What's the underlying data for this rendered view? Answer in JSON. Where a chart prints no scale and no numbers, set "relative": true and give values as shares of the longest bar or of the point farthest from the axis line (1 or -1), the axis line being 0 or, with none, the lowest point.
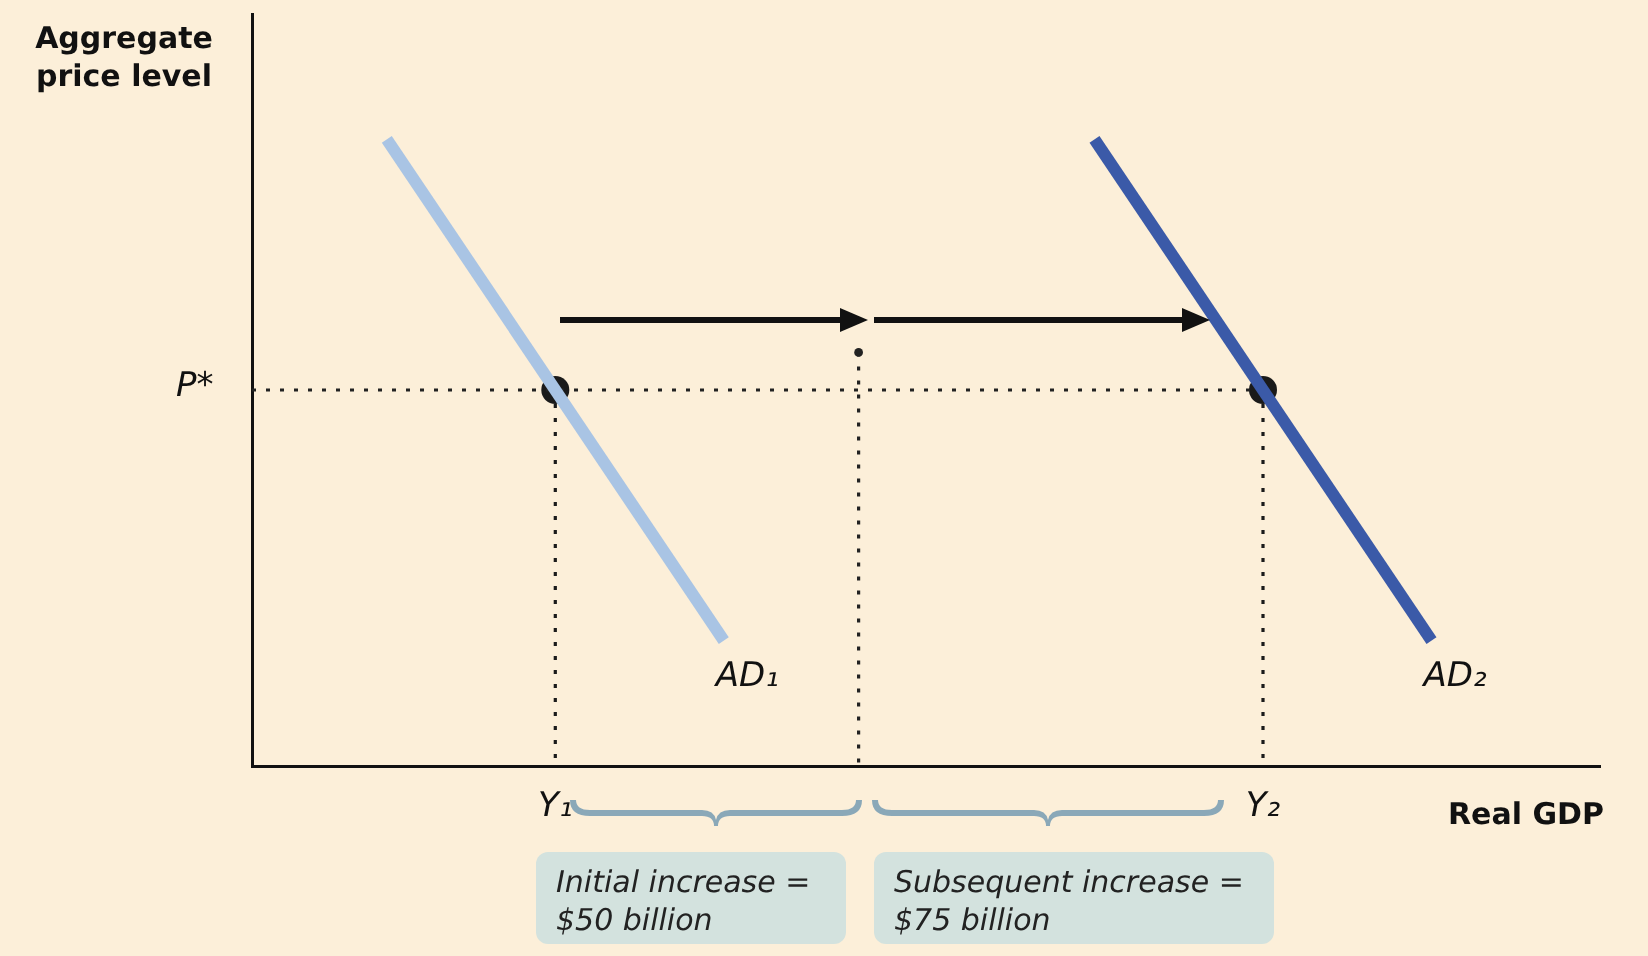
{
  "chart_data": {
    "type": "line",
    "relative": true,
    "xlabel": "Real GDP",
    "ylabel": "Aggregate price level",
    "tick_labels": "x",
    "legend": false,
    "grid": false,
    "categories": [
      null,
      null,
      null,
      null,
      null,
      null,
      null,
      null,
      null,
      "Y₁",
      null,
      null,
      null,
      null,
      null,
      null,
      null,
      null,
      null,
      null,
      null,
      null,
      null,
      null,
      null,
      null,
      null,
      null,
      null,
      null,
      "Y₂",
      null,
      null,
      null,
      null,
      null,
      null,
      null,
      null,
      null,
      null
    ],
    "series": [
      {
        "name": "AD₁",
        "color": "#a9c4e4",
        "marker": "none",
        "line_style": "solid",
        "values": [
          null,
          null,
          null,
          null,
          1,
          null,
          null,
          null,
          null,
          null,
          null,
          null,
          null,
          null,
          0.2,
          null,
          null,
          null,
          null,
          null,
          null,
          null,
          null,
          null,
          null,
          null,
          null,
          null,
          null,
          null,
          null,
          null,
          null,
          null,
          null,
          null,
          null,
          null,
          null,
          null,
          null
        ]
      },
      {
        "name": "AD₂",
        "color": "#3b5aa8",
        "marker": "none",
        "line_style": "solid",
        "values": [
          null,
          null,
          null,
          null,
          null,
          null,
          null,
          null,
          null,
          null,
          null,
          null,
          null,
          null,
          null,
          null,
          null,
          null,
          null,
          null,
          null,
          null,
          null,
          null,
          null,
          1,
          null,
          null,
          null,
          null,
          null,
          null,
          null,
          null,
          null,
          0.2,
          null,
          null,
          null,
          null,
          null
        ]
      },
      {
        "color": "#222222",
        "marker": "none",
        "line_style": "dotted",
        "values": [
          0.6,
          null,
          null,
          null,
          null,
          null,
          null,
          null,
          null,
          null,
          null,
          null,
          null,
          null,
          null,
          null,
          null,
          null,
          null,
          null,
          null,
          null,
          null,
          null,
          null,
          null,
          null,
          null,
          null,
          null,
          0.6,
          null,
          null,
          null,
          null,
          null,
          null,
          null,
          null,
          null,
          null
        ]
      },
      {
        "type": "lollipop",
        "color": "#1a1a1a",
        "marker": "circle",
        "line_style": "dotted",
        "values": [
          null,
          null,
          null,
          null,
          null,
          null,
          null,
          null,
          null,
          0.6,
          null,
          null,
          null,
          null,
          null,
          null,
          null,
          null,
          null,
          null,
          null,
          null,
          null,
          null,
          null,
          null,
          null,
          null,
          null,
          null,
          0.6,
          null,
          null,
          null,
          null,
          null,
          null,
          null,
          null,
          null,
          null
        ]
      },
      {
        "type": "lollipop",
        "color": "#222222",
        "line_style": "dotted",
        "values": [
          null,
          null,
          null,
          null,
          null,
          null,
          null,
          null,
          null,
          null,
          null,
          null,
          null,
          null,
          null,
          null,
          null,
          null,
          0.66,
          null,
          null,
          null,
          null,
          null,
          null,
          null,
          null,
          null,
          null,
          null,
          null,
          null,
          null,
          null,
          null,
          null,
          null,
          null,
          null,
          null,
          null
        ]
      }
    ],
    "annotations": [
      "P*",
      "Initial increase = $50 billion",
      "Subsequent increase = $75 billion"
    ]
  }
}
